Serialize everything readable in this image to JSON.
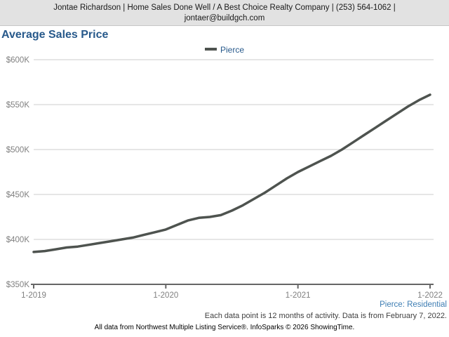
{
  "header": {
    "line1": "Jontae Richardson | Home Sales Done Well / A Best Choice Realty Company | (253) 564-1062 |",
    "line2": "jontaer@buildgch.com"
  },
  "title": "Average Sales Price",
  "legend": {
    "label": "Pierce"
  },
  "chart_data": {
    "type": "line",
    "title": "Average Sales Price",
    "x_interval": "month",
    "x_start": "1-2019",
    "x_end": "1-2022",
    "x_ticks": [
      "1-2019",
      "1-2020",
      "1-2021",
      "1-2022"
    ],
    "x_tick_indices": [
      0,
      12,
      24,
      36
    ],
    "y_ticks": [
      "$350K",
      "$400K",
      "$450K",
      "$500K",
      "$550K",
      "$600K"
    ],
    "ylim": [
      350000,
      600000
    ],
    "grid": true,
    "legend_position": "top-center",
    "series": [
      {
        "name": "Pierce",
        "color": "#4e534f",
        "values": [
          386000,
          387000,
          389000,
          391000,
          392000,
          394000,
          396000,
          398000,
          400000,
          402000,
          405000,
          408000,
          411000,
          416000,
          421000,
          424000,
          425000,
          427000,
          432000,
          438000,
          445000,
          452000,
          460000,
          468000,
          475000,
          481000,
          487000,
          493000,
          500000,
          508000,
          516000,
          524000,
          532000,
          540000,
          548000,
          555000,
          561000
        ]
      }
    ]
  },
  "notes": {
    "region": "Pierce: Residential",
    "data_note": "Each data point is 12 months of activity. Data is from February 7, 2022.",
    "footer": "All data from Northwest Multiple Listing Service®. InfoSparks © 2026 ShowingTime."
  },
  "colors": {
    "line": "#4e534f",
    "grid": "#cccccc",
    "axis": "#666666",
    "tick_text": "#808080",
    "title": "#27598b",
    "region_note": "#3d7db3",
    "header_bg": "#e2e2e2"
  }
}
